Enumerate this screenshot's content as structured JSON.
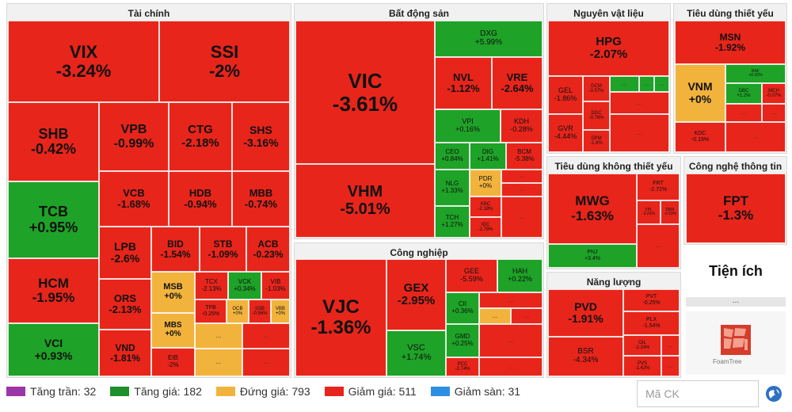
{
  "sectors": {
    "tai_chinh": "Tài chính",
    "bat_dong_san": "Bất động sản",
    "nguyen_vat_lieu": "Nguyên vật liệu",
    "tieu_dung_thiet_yeu": "Tiêu dùng thiết yếu",
    "tieu_dung_khong_thiet_yeu": "Tiêu dùng không thiết yếu",
    "cong_nghe_thong_tin": "Công nghệ thông tin",
    "cong_nghiep": "Công nghiệp",
    "nang_luong": "Năng lượng",
    "tien_ich": "Tiện ích"
  },
  "tiles": [
    {
      "sym": "VIX",
      "chg": "-3.24%"
    },
    {
      "sym": "SSI",
      "chg": "-2%"
    },
    {
      "sym": "SHB",
      "chg": "-0.42%"
    },
    {
      "sym": "VPB",
      "chg": "-0.99%"
    },
    {
      "sym": "CTG",
      "chg": "-2.18%"
    },
    {
      "sym": "SHS",
      "chg": "-3.16%"
    },
    {
      "sym": "TCB",
      "chg": "+0.95%"
    },
    {
      "sym": "VCB",
      "chg": "-1.68%"
    },
    {
      "sym": "HDB",
      "chg": "-0.94%"
    },
    {
      "sym": "MBB",
      "chg": "-0.74%"
    },
    {
      "sym": "HCM",
      "chg": "-1.95%"
    },
    {
      "sym": "LPB",
      "chg": "-2.6%"
    },
    {
      "sym": "BID",
      "chg": "-1.54%"
    },
    {
      "sym": "STB",
      "chg": "-1.09%"
    },
    {
      "sym": "ACB",
      "chg": "-0.23%"
    },
    {
      "sym": "VCI",
      "chg": "+0.93%"
    },
    {
      "sym": "ORS",
      "chg": "-2.13%"
    },
    {
      "sym": "MSB",
      "chg": "+0%"
    },
    {
      "sym": "TCX",
      "chg": "-2.13%"
    },
    {
      "sym": "VCK",
      "chg": "+0.34%"
    },
    {
      "sym": "VIB",
      "chg": "-1.03%"
    },
    {
      "sym": "VND",
      "chg": "-1.81%"
    },
    {
      "sym": "MBS",
      "chg": "+0%"
    },
    {
      "sym": "TPB",
      "chg": "-0.25%"
    },
    {
      "sym": "OCB",
      "chg": "+0%"
    },
    {
      "sym": "SSB",
      "chg": "-0.56%"
    },
    {
      "sym": "VBB",
      "chg": "+0%"
    },
    {
      "sym": "EIB",
      "chg": "-2%"
    },
    {
      "sym": "VIC",
      "chg": "-3.61%"
    },
    {
      "sym": "DXG",
      "chg": "+5.99%"
    },
    {
      "sym": "NVL",
      "chg": "-1.12%"
    },
    {
      "sym": "VRE",
      "chg": "-2.64%"
    },
    {
      "sym": "VPI",
      "chg": "+0.16%"
    },
    {
      "sym": "KDH",
      "chg": "-0.28%"
    },
    {
      "sym": "CEO",
      "chg": "+0.84%"
    },
    {
      "sym": "DIG",
      "chg": "+1.41%"
    },
    {
      "sym": "BCM",
      "chg": "-5.38%"
    },
    {
      "sym": "VHM",
      "chg": "-5.01%"
    },
    {
      "sym": "NLG",
      "chg": "+1.33%"
    },
    {
      "sym": "PDR",
      "chg": "+0%"
    },
    {
      "sym": "KBC",
      "chg": "-2.18%"
    },
    {
      "sym": "TCH",
      "chg": "+1.27%"
    },
    {
      "sym": "IDC",
      "chg": "-1.78%"
    },
    {
      "sym": "HPG",
      "chg": "-2.07%"
    },
    {
      "sym": "GEL",
      "chg": "-1.86%"
    },
    {
      "sym": "DCM",
      "chg": "-0.57%"
    },
    {
      "sym": "DGC",
      "chg": "-0.76%"
    },
    {
      "sym": "GVR",
      "chg": "-4.44%"
    },
    {
      "sym": "DPM",
      "chg": "-1.8%"
    },
    {
      "sym": "MSN",
      "chg": "-1.92%"
    },
    {
      "sym": "VNM",
      "chg": "+0%"
    },
    {
      "sym": "BAF",
      "chg": "+0.33%"
    },
    {
      "sym": "DBC",
      "chg": "+1.2%"
    },
    {
      "sym": "MCH",
      "chg": "-0.07%"
    },
    {
      "sym": "KDC",
      "chg": "-0.19%"
    },
    {
      "sym": "MWG",
      "chg": "-1.63%"
    },
    {
      "sym": "FRT",
      "chg": "-2.72%"
    },
    {
      "sym": "VPL",
      "chg": "-3.25%"
    },
    {
      "sym": "DMX",
      "chg": "-0.53%"
    },
    {
      "sym": "PNJ",
      "chg": "+3.4%"
    },
    {
      "sym": "FPT",
      "chg": "-1.3%"
    },
    {
      "sym": "VJC",
      "chg": "-1.36%"
    },
    {
      "sym": "GEX",
      "chg": "-2.95%"
    },
    {
      "sym": "GEE",
      "chg": "-5.59%"
    },
    {
      "sym": "HAH",
      "chg": "+0.22%"
    },
    {
      "sym": "CII",
      "chg": "+0.36%"
    },
    {
      "sym": "VSC",
      "chg": "+1.74%"
    },
    {
      "sym": "GMD",
      "chg": "+0.25%"
    },
    {
      "sym": "PCC",
      "chg": "-2.74%"
    },
    {
      "sym": "PVD",
      "chg": "-1.91%"
    },
    {
      "sym": "PVT",
      "chg": "-0.25%"
    },
    {
      "sym": "PLX",
      "chg": "-1.54%"
    },
    {
      "sym": "OIL",
      "chg": "-2.24%"
    },
    {
      "sym": "BSR",
      "chg": "-4.34%"
    },
    {
      "sym": "PVS",
      "chg": "-1.42%"
    }
  ],
  "legend": [
    {
      "label": "Tăng trần: 32",
      "color": "#9b35a8"
    },
    {
      "label": "Tăng giá: 182",
      "color": "#1e8f2a"
    },
    {
      "label": "Đứng giá: 793",
      "color": "#f2b33d"
    },
    {
      "label": "Giảm giá: 511",
      "color": "#e8251b"
    },
    {
      "label": "Giảm sàn: 31",
      "color": "#2d8fe3"
    }
  ],
  "search": {
    "placeholder": "Mã CK"
  },
  "ellipsis": "...",
  "logo": {
    "text": "FoamTree"
  },
  "colors": {
    "down": "#e8251b",
    "up": "#1ea227",
    "flat": "#f2b33d"
  }
}
